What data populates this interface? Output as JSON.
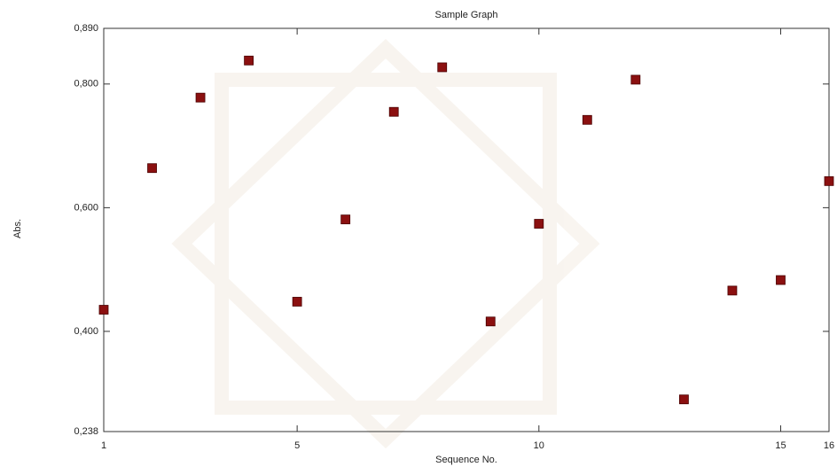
{
  "chart_data": {
    "type": "scatter",
    "title": "Sample Graph",
    "x_label": "Sequence No.",
    "y_label": "Abs.",
    "series": [
      {
        "color": "#8b1010",
        "x": [
          1,
          2,
          3,
          4,
          5,
          6,
          7,
          8,
          9,
          10,
          11,
          12,
          13,
          14,
          15,
          16
        ],
        "values": [
          0.435,
          0.664,
          0.778,
          0.838,
          0.448,
          0.581,
          0.755,
          0.827,
          0.416,
          0.574,
          0.742,
          0.807,
          0.29,
          0.466,
          0.483,
          0.643
        ]
      }
    ],
    "xlim": [
      1,
      16
    ],
    "xticks": [
      1,
      5,
      10,
      15,
      16
    ],
    "ylim": [
      0.238,
      0.89
    ],
    "yticks": [
      {
        "value": 0.238,
        "label": "0,238"
      },
      {
        "value": 0.4,
        "label": "0,400"
      },
      {
        "value": 0.6,
        "label": "0,600"
      },
      {
        "value": 0.8,
        "label": "0,800"
      },
      {
        "value": 0.89,
        "label": "0,890"
      }
    ]
  }
}
